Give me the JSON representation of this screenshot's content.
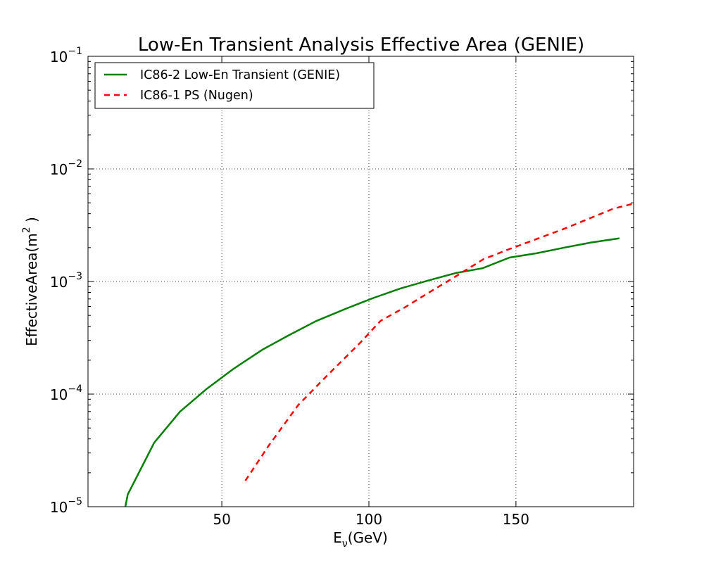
{
  "chart_data": {
    "type": "line",
    "title": "Low-En Transient Analysis Effective Area (GENIE)",
    "xlabel": {
      "base": "E",
      "sub": "ν",
      "rest": "(GeV)"
    },
    "ylabel": {
      "base": "EffectiveArea(m",
      "sup": "2",
      "rest": " )"
    },
    "xlim": [
      4.5,
      190
    ],
    "ylim": [
      1e-05,
      0.1
    ],
    "yscale": "log",
    "grid": true,
    "legend_position": "top-left",
    "x_ticks": [
      {
        "value": 50,
        "label": "50"
      },
      {
        "value": 100,
        "label": "100"
      },
      {
        "value": 150,
        "label": "150"
      }
    ],
    "y_ticks": [
      {
        "value": 1e-05,
        "base": "10",
        "exp": "−5"
      },
      {
        "value": 0.0001,
        "base": "10",
        "exp": "−4"
      },
      {
        "value": 0.001,
        "base": "10",
        "exp": "−3"
      },
      {
        "value": 0.01,
        "base": "10",
        "exp": "−2"
      },
      {
        "value": 0.1,
        "base": "10",
        "exp": "−1"
      }
    ],
    "series": [
      {
        "name": "IC86-2 Low-En Transient (GENIE)",
        "color": "#008000",
        "style": "solid",
        "x": [
          17.2,
          18.0,
          27.0,
          35.8,
          45.0,
          54.0,
          63.8,
          72.5,
          82.0,
          92.5,
          101.8,
          110.8,
          120.2,
          129.6,
          138.6,
          147.8,
          157.0,
          166.5,
          175.5,
          185.2
        ],
        "y": [
          1e-05,
          1.28e-05,
          3.7e-05,
          7e-05,
          0.000112,
          0.000168,
          0.000248,
          0.00033,
          0.000445,
          0.000578,
          0.000718,
          0.000868,
          0.00102,
          0.00119,
          0.00131,
          0.00163,
          0.00178,
          0.002,
          0.00222,
          0.00242
        ]
      },
      {
        "name": "IC86-1 PS (Nugen)",
        "color": "#ff0000",
        "style": "dashed",
        "x": [
          58.0,
          66.0,
          76.0,
          86.0,
          97.0,
          104.0,
          112.0,
          121.0,
          130.0,
          139.0,
          148.0,
          157.0,
          167.0,
          176.0,
          183.0,
          190.0
        ],
        "y": [
          1.7e-05,
          3.5e-05,
          8e-05,
          0.000148,
          0.000285,
          0.000448,
          0.000585,
          0.000815,
          0.00113,
          0.00158,
          0.00195,
          0.00238,
          0.00298,
          0.00372,
          0.00442,
          0.00492
        ]
      }
    ]
  }
}
